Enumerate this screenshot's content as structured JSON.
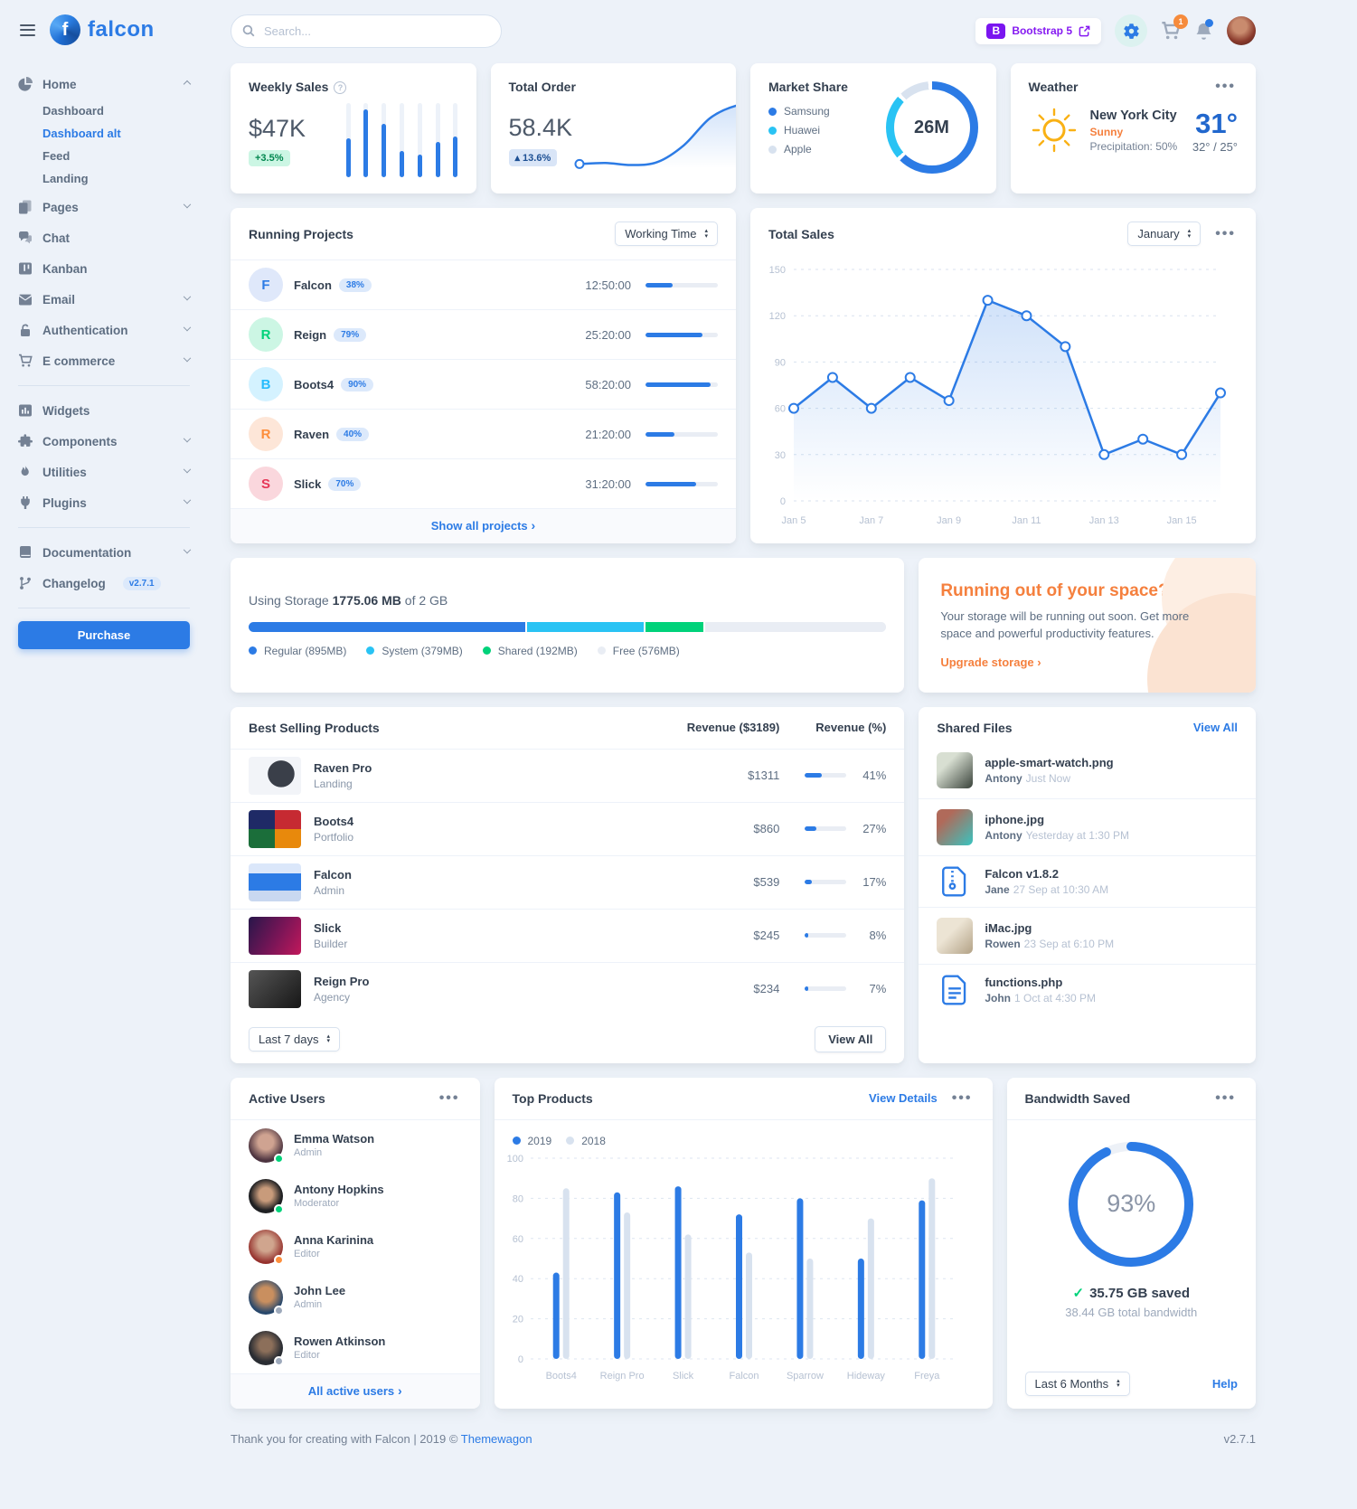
{
  "app": {
    "brand": "falcon",
    "footer_text": "Thank you for creating with Falcon | 2019 © ",
    "footer_link": "Themewagon",
    "version": "v2.7.1"
  },
  "header": {
    "search_placeholder": "Search...",
    "bootstrap_badge": "Bootstrap 5",
    "cart_count": "1"
  },
  "sidebar": {
    "home": {
      "label": "Home",
      "children": [
        {
          "label": "Dashboard"
        },
        {
          "label": "Dashboard alt"
        },
        {
          "label": "Feed"
        },
        {
          "label": "Landing"
        }
      ]
    },
    "items": [
      {
        "label": "Pages"
      },
      {
        "label": "Chat"
      },
      {
        "label": "Kanban"
      },
      {
        "label": "Email"
      },
      {
        "label": "Authentication"
      },
      {
        "label": "E commerce"
      },
      {
        "label": "Widgets"
      },
      {
        "label": "Components"
      },
      {
        "label": "Utilities"
      },
      {
        "label": "Plugins"
      },
      {
        "label": "Documentation"
      },
      {
        "label": "Changelog",
        "badge": "v2.7.1"
      }
    ],
    "purchase_label": "Purchase"
  },
  "weekly_sales": {
    "title": "Weekly Sales",
    "value": "$47K",
    "badge": "+3.5%"
  },
  "total_order": {
    "title": "Total Order",
    "value": "58.4K",
    "badge": "13.6%"
  },
  "market_share": {
    "title": "Market Share",
    "center_label": "26M",
    "legend": [
      {
        "label": "Samsung",
        "color": "#2c7be5"
      },
      {
        "label": "Huawei",
        "color": "#29c3f4"
      },
      {
        "label": "Apple",
        "color": "#d8e2ef"
      }
    ]
  },
  "weather": {
    "title": "Weather",
    "city": "New York City",
    "condition": "Sunny",
    "precipitation": "Precipitation: 50%",
    "temp": "31°",
    "high_low": "32° / 25°"
  },
  "running_projects": {
    "title": "Running Projects",
    "select_value": "Working Time",
    "footer_link": "Show all projects",
    "rows": [
      {
        "initial": "F",
        "name": "Falcon",
        "percent": "38%",
        "pct": 38,
        "time": "12:50:00",
        "color": "#2c7be5",
        "bg": "#dfe8fa"
      },
      {
        "initial": "R",
        "name": "Reign",
        "percent": "79%",
        "pct": 79,
        "time": "25:20:00",
        "color": "#00d27a",
        "bg": "#ccf6e4"
      },
      {
        "initial": "B",
        "name": "Boots4",
        "percent": "90%",
        "pct": 90,
        "time": "58:20:00",
        "color": "#27bcfd",
        "bg": "#d4f2ff"
      },
      {
        "initial": "R",
        "name": "Raven",
        "percent": "40%",
        "pct": 40,
        "time": "21:20:00",
        "color": "#fd8e3c",
        "bg": "#fde6d8"
      },
      {
        "initial": "S",
        "name": "Slick",
        "percent": "70%",
        "pct": 70,
        "time": "31:20:00",
        "color": "#e63757",
        "bg": "#fad7dd"
      }
    ]
  },
  "total_sales": {
    "title": "Total Sales",
    "select_value": "January"
  },
  "storage": {
    "prefix": "Using Storage ",
    "used": "1775.06 MB",
    "suffix": " of 2 GB",
    "segments": [
      {
        "label": "Regular (895MB)",
        "color": "#2c7be5",
        "pct": 43.7
      },
      {
        "label": "System (379MB)",
        "color": "#29c3f4",
        "pct": 18.5
      },
      {
        "label": "Shared (192MB)",
        "color": "#00d27a",
        "pct": 9.4
      },
      {
        "label": "Free (576MB)",
        "color": "#e9edf4",
        "pct": 28.4
      }
    ]
  },
  "space_card": {
    "title": "Running out of your space?",
    "body": "Your storage will be running out soon. Get more space and powerful productivity features.",
    "link": "Upgrade storage"
  },
  "best_selling": {
    "title": "Best Selling Products",
    "col_revenue": "Revenue ($3189)",
    "col_percent": "Revenue (%)",
    "select_value": "Last 7 days",
    "view_all": "View All",
    "rows": [
      {
        "name": "Raven Pro",
        "category": "Landing",
        "revenue": "$1311",
        "percent": "41%",
        "pct": 41
      },
      {
        "name": "Boots4",
        "category": "Portfolio",
        "revenue": "$860",
        "percent": "27%",
        "pct": 27
      },
      {
        "name": "Falcon",
        "category": "Admin",
        "revenue": "$539",
        "percent": "17%",
        "pct": 17
      },
      {
        "name": "Slick",
        "category": "Builder",
        "revenue": "$245",
        "percent": "8%",
        "pct": 8
      },
      {
        "name": "Reign Pro",
        "category": "Agency",
        "revenue": "$234",
        "percent": "7%",
        "pct": 7
      }
    ]
  },
  "shared_files": {
    "title": "Shared Files",
    "view_all": "View All",
    "rows": [
      {
        "name": "apple-smart-watch.png",
        "user": "Antony",
        "time": "Just Now"
      },
      {
        "name": "iphone.jpg",
        "user": "Antony",
        "time": "Yesterday at 1:30 PM"
      },
      {
        "name": "Falcon v1.8.2",
        "user": "Jane",
        "time": "27 Sep at 10:30 AM"
      },
      {
        "name": "iMac.jpg",
        "user": "Rowen",
        "time": "23 Sep at 6:10 PM"
      },
      {
        "name": "functions.php",
        "user": "John",
        "time": "1 Oct at 4:30 PM"
      }
    ]
  },
  "active_users": {
    "title": "Active Users",
    "footer_link": "All active users",
    "rows": [
      {
        "name": "Emma Watson",
        "role": "Admin",
        "status": "#00d27a"
      },
      {
        "name": "Antony Hopkins",
        "role": "Moderator",
        "status": "#00d27a"
      },
      {
        "name": "Anna Karinina",
        "role": "Editor",
        "status": "#fd8e3c"
      },
      {
        "name": "John Lee",
        "role": "Admin",
        "status": "#9da9bb"
      },
      {
        "name": "Rowen Atkinson",
        "role": "Editor",
        "status": "#9da9bb"
      }
    ]
  },
  "top_products": {
    "title": "Top Products",
    "view_details": "View Details",
    "legend": [
      {
        "label": "2019",
        "color": "#2c7be5"
      },
      {
        "label": "2018",
        "color": "#d8e2ef"
      }
    ]
  },
  "bandwidth": {
    "title": "Bandwidth Saved",
    "percent": "93%",
    "saved": "35.75 GB saved",
    "total": "38.44 GB total bandwidth",
    "select_value": "Last 6 Months",
    "help": "Help"
  },
  "chart_data": [
    {
      "id": "weekly-sales",
      "type": "bar",
      "title": "Weekly Sales",
      "values": [
        52,
        92,
        72,
        35,
        30,
        48,
        55
      ],
      "ylim": [
        0,
        100
      ],
      "color": "#2c7be5"
    },
    {
      "id": "total-order",
      "type": "line",
      "title": "Total Order",
      "values": [
        12,
        13,
        11,
        14,
        30,
        56,
        68,
        70
      ],
      "color": "#2c7be5",
      "smooth": true
    },
    {
      "id": "market-share",
      "type": "pie",
      "title": "Market Share",
      "center_label": "26M",
      "series": [
        {
          "name": "Samsung",
          "value": 65
        },
        {
          "name": "Huawei",
          "value": 24
        },
        {
          "name": "Apple",
          "value": 11
        }
      ],
      "colors": [
        "#2c7be5",
        "#29c3f4",
        "#d8e2ef"
      ]
    },
    {
      "id": "total-sales",
      "type": "line",
      "title": "Total Sales",
      "x": [
        "Jan 5",
        "Jan 6",
        "Jan 7",
        "Jan 8",
        "Jan 9",
        "Jan 10",
        "Jan 11",
        "Jan 12",
        "Jan 13",
        "Jan 14",
        "Jan 15",
        "Jan 16"
      ],
      "x_ticks": [
        "Jan 5",
        "Jan 7",
        "Jan 9",
        "Jan 11",
        "Jan 13",
        "Jan 15"
      ],
      "values": [
        60,
        80,
        60,
        80,
        65,
        130,
        120,
        100,
        30,
        40,
        30,
        70
      ],
      "y_ticks": [
        0,
        30,
        60,
        90,
        120,
        150
      ],
      "ylim": [
        0,
        150
      ],
      "color": "#2c7be5",
      "grid": true
    },
    {
      "id": "top-products",
      "type": "bar",
      "title": "Top Products",
      "categories": [
        "Boots4",
        "Reign Pro",
        "Slick",
        "Falcon",
        "Sparrow",
        "Hideway",
        "Freya"
      ],
      "series": [
        {
          "name": "2019",
          "values": [
            43,
            83,
            86,
            72,
            80,
            50,
            79
          ],
          "color": "#2c7be5"
        },
        {
          "name": "2018",
          "values": [
            85,
            73,
            62,
            53,
            50,
            70,
            90
          ],
          "color": "#d8e2ef"
        }
      ],
      "y_ticks": [
        0,
        20,
        40,
        60,
        80,
        100
      ],
      "ylim": [
        0,
        100
      ],
      "grid": true,
      "legend_position": "top-left"
    },
    {
      "id": "bandwidth-gauge",
      "type": "gauge",
      "title": "Bandwidth Saved",
      "value": 93,
      "label": "93%",
      "color": "#2c7be5",
      "track": "#edf1f7"
    }
  ]
}
